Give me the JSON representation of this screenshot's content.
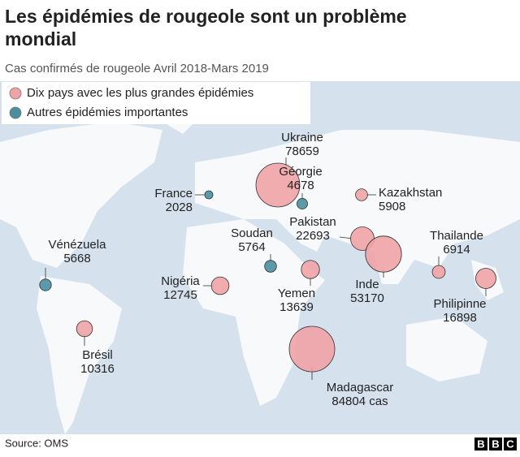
{
  "title": "Les épidémies de rougeole sont un problème mondial",
  "subtitle": "Cas confirmés de rougeole Avril 2018-Mars 2019",
  "legend": [
    {
      "label": "Dix pays avec les plus grandes épidémies",
      "color": "#f0a3a6"
    },
    {
      "label": "Autres épidémies importantes",
      "color": "#4a8ea0"
    }
  ],
  "points": [
    {
      "name": "Ukraine",
      "value": 78659,
      "color": "#f0a3a6"
    },
    {
      "name": "Géorgie",
      "value": 4678,
      "color": "#4a8ea0"
    },
    {
      "name": "France",
      "value": 2028,
      "color": "#4a8ea0"
    },
    {
      "name": "Kazakhstan",
      "value": 5908,
      "color": "#f0a3a6"
    },
    {
      "name": "Pakistan",
      "value": 22693,
      "color": "#f0a3a6"
    },
    {
      "name": "Inde",
      "value": 53170,
      "color": "#f0a3a6"
    },
    {
      "name": "Thailande",
      "value": 6914,
      "color": "#f0a3a6"
    },
    {
      "name": "Philipinne",
      "value": 16898,
      "color": "#f0a3a6"
    },
    {
      "name": "Soudan",
      "value": 5764,
      "color": "#4a8ea0"
    },
    {
      "name": "Yemen",
      "value": 13639,
      "color": "#f0a3a6"
    },
    {
      "name": "Nigéria",
      "value": 12745,
      "color": "#f0a3a6"
    },
    {
      "name": "Vénézuela",
      "value": 5668,
      "color": "#4a8ea0"
    },
    {
      "name": "Brésil",
      "value": 10316,
      "color": "#f0a3a6"
    },
    {
      "name": "Madagascar",
      "value": 84804,
      "value_label": "84804 cas",
      "color": "#f0a3a6"
    }
  ],
  "source": "Source: OMS",
  "logo": [
    "B",
    "B",
    "C"
  ]
}
